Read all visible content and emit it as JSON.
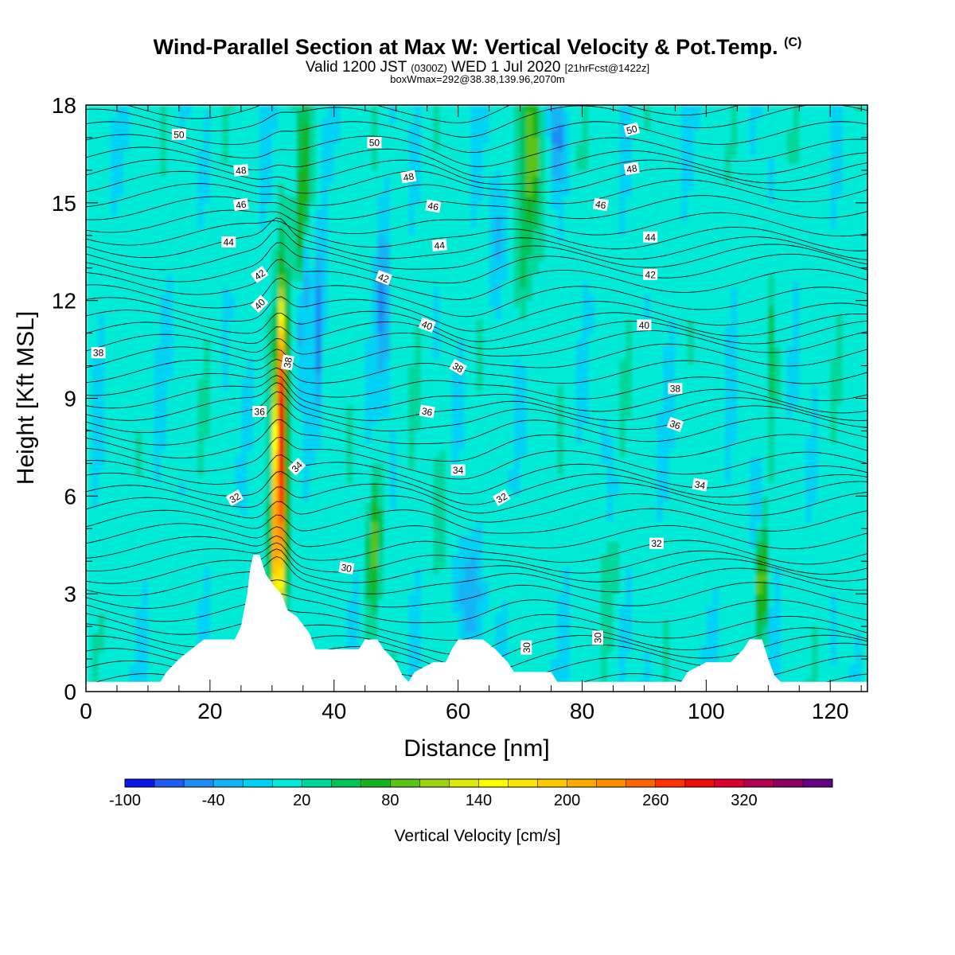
{
  "header": {
    "title": "Wind-Parallel Section at Max W: Vertical Velocity & Pot.Temp.",
    "title_mark": "(C)",
    "valid_prefix": "Valid 1200 JST",
    "valid_utc": "(0300Z)",
    "valid_date": "WED 1 Jul 2020",
    "valid_fcst": "[21hrFcst@1422z]",
    "boxline": "boxWmax=292@38.38,139.96,2070m"
  },
  "chart_data": {
    "type": "heatmap",
    "xlabel": "Distance [nm]",
    "ylabel": "Height [Kft MSL]",
    "xlim": [
      0,
      126
    ],
    "ylim": [
      0,
      18
    ],
    "x_ticks": [
      "0",
      "20",
      "40",
      "60",
      "80",
      "100",
      "120"
    ],
    "y_ticks": [
      "0",
      "3",
      "6",
      "9",
      "12",
      "15",
      "18"
    ],
    "colorbar": {
      "title": "Vertical Velocity [cm/s]",
      "tick_labels": [
        "-100",
        "-40",
        "20",
        "80",
        "140",
        "200",
        "260",
        "320"
      ],
      "levels": [
        -100,
        -80,
        -60,
        -40,
        -20,
        0,
        20,
        40,
        60,
        80,
        100,
        120,
        140,
        160,
        180,
        200,
        220,
        240,
        260,
        280,
        300,
        320,
        340,
        360
      ],
      "colors": [
        "#0a14e6",
        "#1e5af0",
        "#1e8cf5",
        "#14b4f5",
        "#00d2f5",
        "#00ebd7",
        "#00d79b",
        "#00c35a",
        "#14b41e",
        "#5ac314",
        "#a0d214",
        "#dceb0a",
        "#ffff00",
        "#ffe600",
        "#ffc800",
        "#ffaa00",
        "#ff8c00",
        "#ff6400",
        "#ff3200",
        "#f00a0a",
        "#dc0032",
        "#b40050",
        "#8c0064",
        "#640082"
      ]
    },
    "updraft_cores": [
      {
        "x": 31.2,
        "y_range": [
          1.2,
          13.5
        ],
        "peak_cm_s": 292
      },
      {
        "x": 35.2,
        "y_range": [
          13.0,
          18.0
        ],
        "peak_cm_s": 100
      },
      {
        "x": 46.5,
        "y_range": [
          2.0,
          6.5
        ],
        "peak_cm_s": 80
      },
      {
        "x": 72.0,
        "y_range": [
          13.5,
          18.0
        ],
        "peak_cm_s": 110
      },
      {
        "x": 109.0,
        "y_range": [
          2.0,
          5.0
        ],
        "peak_cm_s": 110
      }
    ],
    "theta_contour_labels": [
      {
        "text": "50",
        "x": 15,
        "y": 17.1,
        "rot": 0
      },
      {
        "text": "50",
        "x": 46.5,
        "y": 16.85,
        "rot": 0
      },
      {
        "text": "50",
        "x": 88,
        "y": 17.25,
        "rot": -15
      },
      {
        "text": "48",
        "x": 25,
        "y": 16.0,
        "rot": -5
      },
      {
        "text": "48",
        "x": 52,
        "y": 15.8,
        "rot": -10
      },
      {
        "text": "48",
        "x": 88,
        "y": 16.05,
        "rot": -10
      },
      {
        "text": "46",
        "x": 25,
        "y": 14.95,
        "rot": -8
      },
      {
        "text": "46",
        "x": 56,
        "y": 14.9,
        "rot": 10
      },
      {
        "text": "46",
        "x": 83,
        "y": 14.95,
        "rot": 10
      },
      {
        "text": "44",
        "x": 23,
        "y": 13.8,
        "rot": 0
      },
      {
        "text": "44",
        "x": 57,
        "y": 13.7,
        "rot": -5
      },
      {
        "text": "44",
        "x": 91,
        "y": 13.95,
        "rot": 0
      },
      {
        "text": "42",
        "x": 28,
        "y": 12.8,
        "rot": -35
      },
      {
        "text": "42",
        "x": 48,
        "y": 12.7,
        "rot": 20
      },
      {
        "text": "42",
        "x": 91,
        "y": 12.8,
        "rot": 0
      },
      {
        "text": "40",
        "x": 28,
        "y": 11.9,
        "rot": -45
      },
      {
        "text": "40",
        "x": 55,
        "y": 11.25,
        "rot": 20
      },
      {
        "text": "40",
        "x": 90,
        "y": 11.25,
        "rot": 0
      },
      {
        "text": "38",
        "x": 2,
        "y": 10.4,
        "rot": 0
      },
      {
        "text": "38",
        "x": 32.5,
        "y": 10.1,
        "rot": -80
      },
      {
        "text": "38",
        "x": 60,
        "y": 9.95,
        "rot": 30
      },
      {
        "text": "38",
        "x": 95,
        "y": 9.3,
        "rot": 0
      },
      {
        "text": "36",
        "x": 28,
        "y": 8.6,
        "rot": 0
      },
      {
        "text": "36",
        "x": 55,
        "y": 8.6,
        "rot": 10
      },
      {
        "text": "36",
        "x": 95,
        "y": 8.2,
        "rot": 20
      },
      {
        "text": "34",
        "x": 34,
        "y": 6.9,
        "rot": -45
      },
      {
        "text": "34",
        "x": 60,
        "y": 6.8,
        "rot": 0
      },
      {
        "text": "34",
        "x": 99,
        "y": 6.35,
        "rot": 10
      },
      {
        "text": "32",
        "x": 24,
        "y": 5.95,
        "rot": -30
      },
      {
        "text": "32",
        "x": 67,
        "y": 5.95,
        "rot": -30
      },
      {
        "text": "32",
        "x": 92,
        "y": 4.55,
        "rot": 0
      },
      {
        "text": "30",
        "x": 42,
        "y": 3.8,
        "rot": 10
      },
      {
        "text": "30",
        "x": 71,
        "y": 1.35,
        "rot": -90
      },
      {
        "text": "30",
        "x": 82.5,
        "y": 1.65,
        "rot": -90
      }
    ],
    "terrain": [
      [
        0,
        0.3
      ],
      [
        12,
        0.3
      ],
      [
        13,
        0.6
      ],
      [
        15,
        1.0
      ],
      [
        17,
        1.3
      ],
      [
        19,
        1.6
      ],
      [
        24,
        1.6
      ],
      [
        25,
        2.0
      ],
      [
        26,
        3.0
      ],
      [
        26.5,
        3.8
      ],
      [
        27,
        4.2
      ],
      [
        28,
        4.2
      ],
      [
        29,
        3.6
      ],
      [
        30.5,
        3.2
      ],
      [
        31.5,
        3.0
      ],
      [
        32.5,
        2.5
      ],
      [
        34,
        2.3
      ],
      [
        36,
        1.8
      ],
      [
        37,
        1.3
      ],
      [
        42,
        1.3
      ],
      [
        44,
        1.3
      ],
      [
        45,
        1.6
      ],
      [
        47,
        1.6
      ],
      [
        48,
        1.3
      ],
      [
        50,
        0.9
      ],
      [
        51,
        0.5
      ],
      [
        52,
        0.3
      ],
      [
        53,
        0.6
      ],
      [
        56,
        0.9
      ],
      [
        58,
        0.9
      ],
      [
        59,
        1.3
      ],
      [
        60,
        1.6
      ],
      [
        64,
        1.6
      ],
      [
        66,
        1.3
      ],
      [
        68,
        0.9
      ],
      [
        69,
        0.6
      ],
      [
        75,
        0.6
      ],
      [
        76,
        0.3
      ],
      [
        96,
        0.3
      ],
      [
        97,
        0.6
      ],
      [
        100,
        0.9
      ],
      [
        104,
        0.9
      ],
      [
        106,
        1.3
      ],
      [
        107,
        1.6
      ],
      [
        109,
        1.6
      ],
      [
        110,
        1.0
      ],
      [
        111,
        0.5
      ],
      [
        112,
        0.3
      ],
      [
        126,
        0.3
      ]
    ]
  }
}
